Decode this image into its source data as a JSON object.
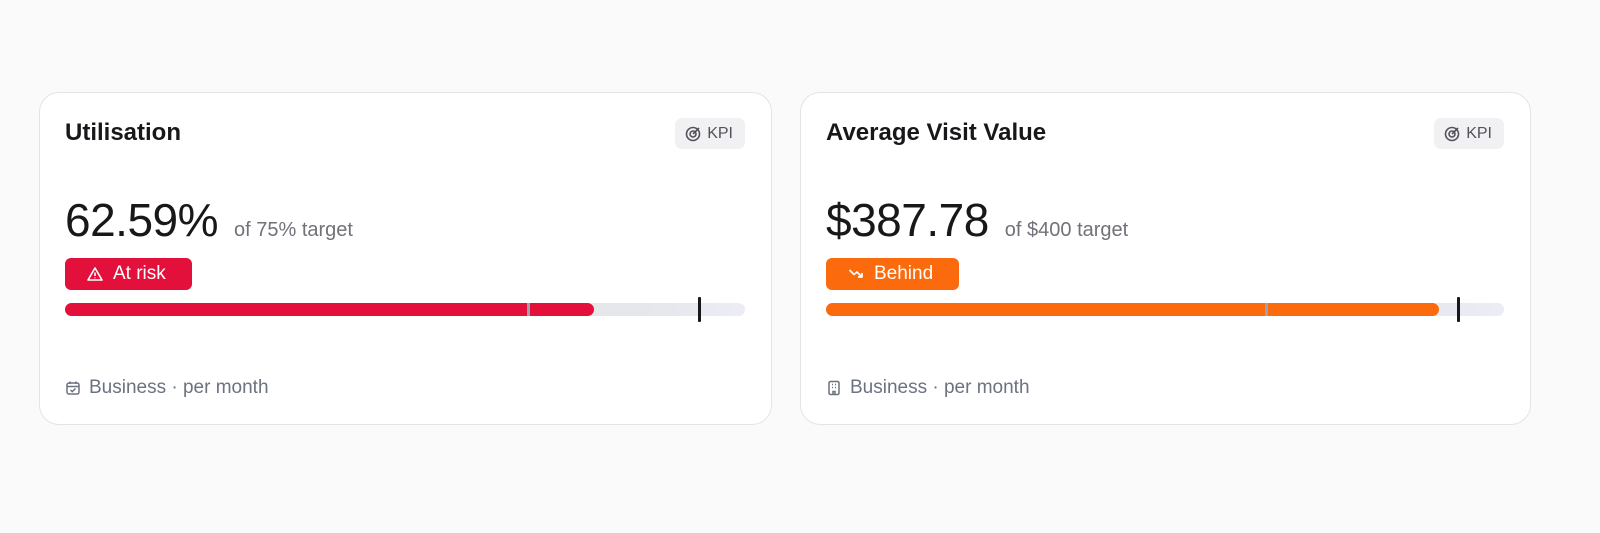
{
  "cards": [
    {
      "title": "Utilisation",
      "badge": "KPI",
      "value": 62.59,
      "value_label": "62.59%",
      "target": 75,
      "target_label": "of 75% target",
      "status": "At risk",
      "status_color": "#e3103b",
      "range": [
        0,
        80.4
      ],
      "marker": 54.8,
      "footer": "Business · per month"
    },
    {
      "title": "Average Visit Value",
      "badge": "KPI",
      "value": 387.78,
      "value_label": "$387.78",
      "target": 400,
      "target_label": "of $400 target",
      "status": "Behind",
      "status_color": "#fb6a0c",
      "range": [
        0,
        429
      ],
      "marker": 279,
      "footer": "Business · per month"
    }
  ]
}
